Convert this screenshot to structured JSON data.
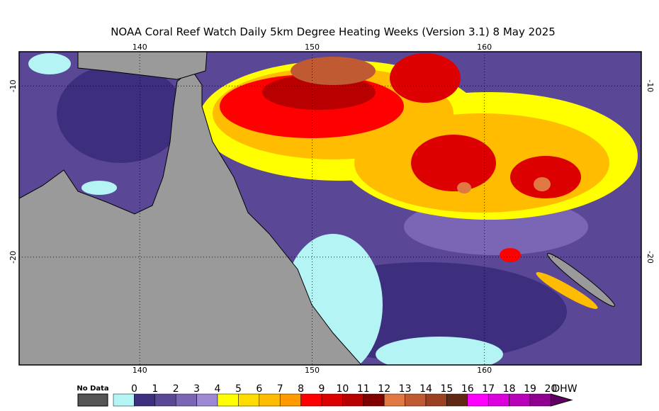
{
  "title": "NOAA Coral Reef Watch Daily 5km Degree Heating Weeks (Version 3.1)  8 May 2025",
  "map": {
    "xticks": [
      140,
      150,
      160
    ],
    "yticks": [
      -10,
      -20
    ],
    "xlim": [
      133,
      169.1
    ],
    "ylim": [
      -8,
      -26.3
    ]
  },
  "legend": {
    "no_data": "No Data",
    "unit": "DHW",
    "ticks": [
      0,
      1,
      2,
      3,
      4,
      5,
      6,
      7,
      8,
      9,
      10,
      11,
      12,
      13,
      14,
      15,
      16,
      17,
      18,
      19,
      20
    ],
    "colors": [
      "#b4f4f4",
      "#3e2f7e",
      "#5a4796",
      "#7a66b4",
      "#9e8ad4",
      "#ffff00",
      "#ffdc00",
      "#ffbc00",
      "#ff9a00",
      "#ff0000",
      "#dc0000",
      "#b80000",
      "#800000",
      "#e07844",
      "#c05a32",
      "#9c4024",
      "#602814",
      "#ff00ff",
      "#dc00dc",
      "#b800b8",
      "#900090",
      "#600060"
    ]
  }
}
